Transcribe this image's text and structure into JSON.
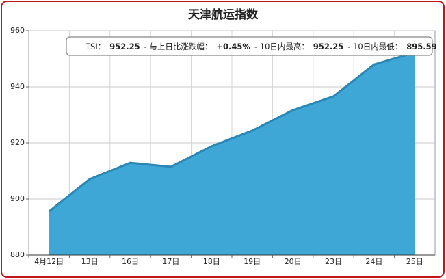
{
  "chart_data": {
    "type": "area",
    "title": "天津航运指数",
    "categories": [
      "4月12日",
      "13日",
      "16日",
      "17日",
      "18日",
      "19日",
      "20日",
      "23日",
      "24日",
      "25日"
    ],
    "series": [
      {
        "name": "TSI",
        "color": "#3ea7d6",
        "line_color": "#2a86b3",
        "values": [
          895.59,
          907.1,
          912.9,
          911.5,
          918.8,
          924.4,
          931.7,
          936.6,
          948.0,
          952.25
        ]
      }
    ],
    "ylim": [
      880,
      960
    ],
    "yticks": [
      880,
      900,
      920,
      940,
      960
    ],
    "grid": true,
    "tooltip": [
      "TSI：",
      "952.25",
      "- 与上日比涨跌幅：",
      "+0.45%",
      "- 10日内最高：",
      "952.25",
      "- 10日内最低：",
      "895.59"
    ]
  }
}
